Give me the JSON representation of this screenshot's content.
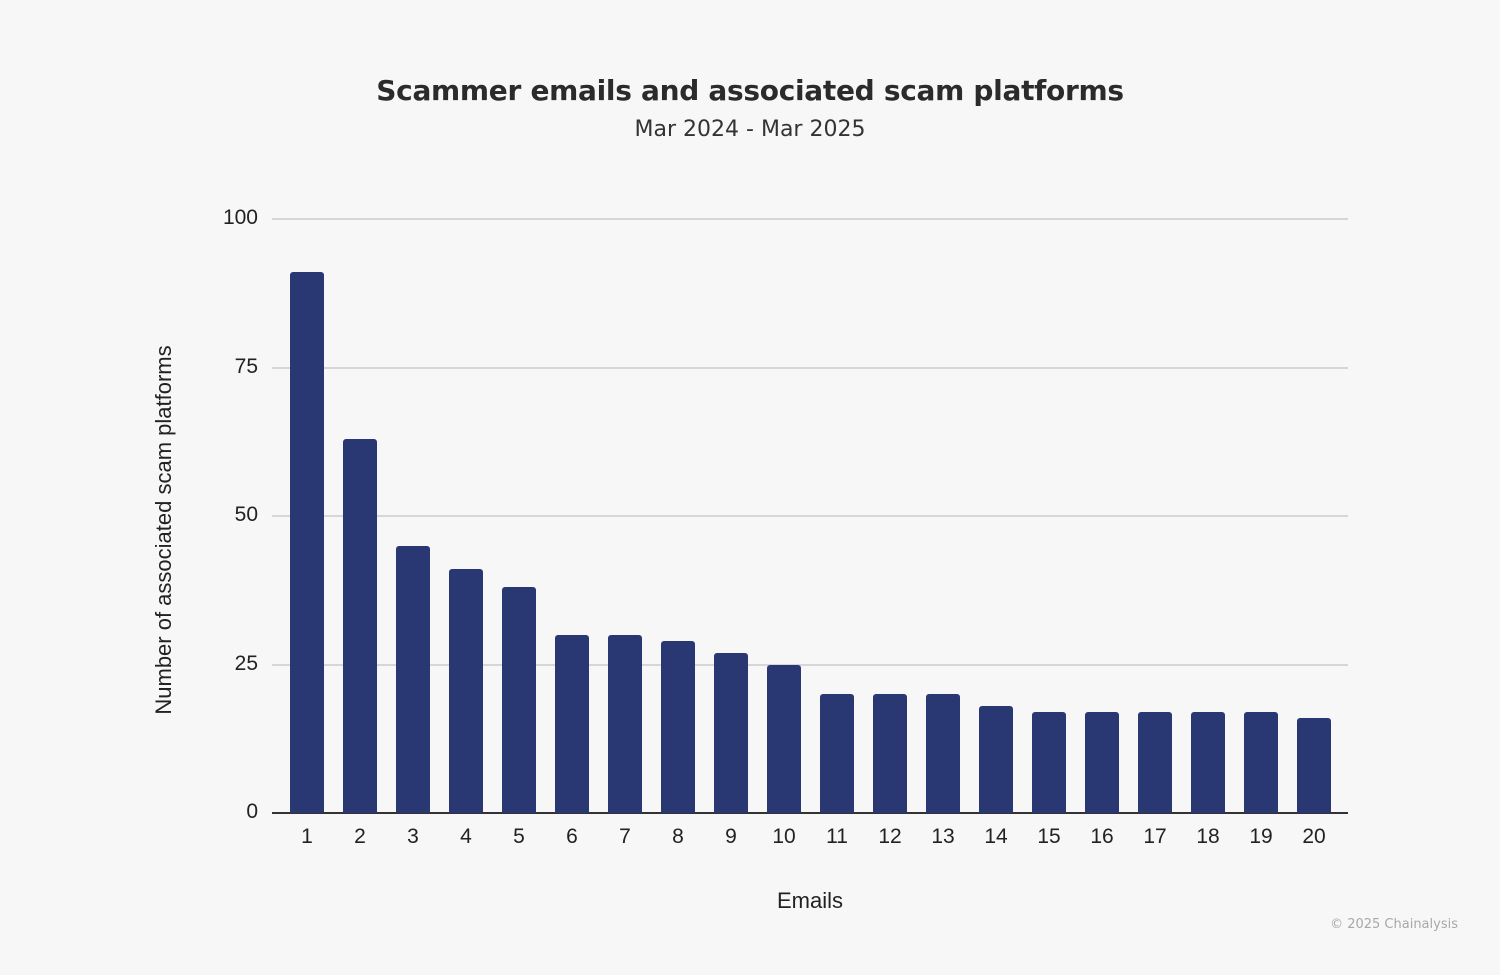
{
  "chart_data": {
    "type": "bar",
    "title": "Scammer emails and associated scam platforms",
    "subtitle": "Mar 2024 - Mar 2025",
    "xlabel": "Emails",
    "ylabel": "Number of associated scam platforms",
    "categories": [
      "1",
      "2",
      "3",
      "4",
      "5",
      "6",
      "7",
      "8",
      "9",
      "10",
      "11",
      "12",
      "13",
      "14",
      "15",
      "16",
      "17",
      "18",
      "19",
      "20"
    ],
    "values": [
      91,
      63,
      45,
      41,
      38,
      30,
      30,
      29,
      27,
      25,
      20,
      20,
      20,
      18,
      17,
      17,
      17,
      17,
      17,
      16
    ],
    "ylim": [
      0,
      100
    ],
    "yticks": [
      "0",
      "25",
      "50",
      "75",
      "100"
    ],
    "grid": true,
    "legend": null,
    "bar_color": "#293872"
  },
  "footer": {
    "credit": "© 2025 Chainalysis"
  }
}
